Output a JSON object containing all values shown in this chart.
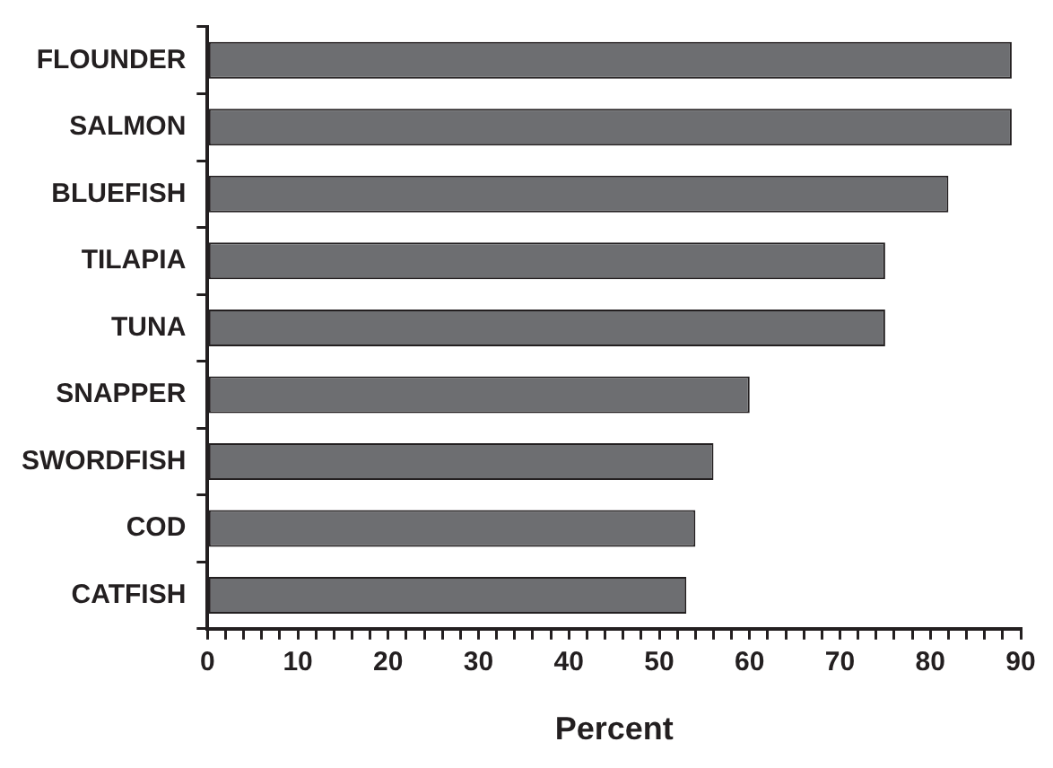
{
  "chart_data": {
    "type": "bar",
    "orientation": "horizontal",
    "xlabel": "Percent",
    "categories": [
      "FLOUNDER",
      "SALMON",
      "BLUEFISH",
      "TILAPIA",
      "TUNA",
      "SNAPPER",
      "SWORDFISH",
      "COD",
      "CATFISH"
    ],
    "values": [
      89,
      89,
      82,
      75,
      75,
      60,
      56,
      54,
      53
    ],
    "color": "#6d6e71",
    "xlim": [
      0,
      90
    ],
    "xticks": [
      0,
      {
        "value": 2,
        "label": null
      },
      {
        "value": 4,
        "label": null
      },
      {
        "value": 6,
        "label": null
      },
      {
        "value": 8,
        "label": null
      },
      10,
      {
        "value": 12,
        "label": null
      },
      {
        "value": 14,
        "label": null
      },
      {
        "value": 16,
        "label": null
      },
      {
        "value": 18,
        "label": null
      },
      20,
      {
        "value": 22,
        "label": null
      },
      {
        "value": 24,
        "label": null
      },
      {
        "value": 26,
        "label": null
      },
      {
        "value": 28,
        "label": null
      },
      30,
      {
        "value": 32,
        "label": null
      },
      {
        "value": 34,
        "label": null
      },
      {
        "value": 36,
        "label": null
      },
      {
        "value": 38,
        "label": null
      },
      40,
      {
        "value": 42,
        "label": null
      },
      {
        "value": 44,
        "label": null
      },
      {
        "value": 46,
        "label": null
      },
      {
        "value": 48,
        "label": null
      },
      50,
      {
        "value": 52,
        "label": null
      },
      {
        "value": 54,
        "label": null
      },
      {
        "value": 56,
        "label": null
      },
      {
        "value": 58,
        "label": null
      },
      60,
      {
        "value": 62,
        "label": null
      },
      {
        "value": 64,
        "label": null
      },
      {
        "value": 66,
        "label": null
      },
      {
        "value": 68,
        "label": null
      },
      70,
      {
        "value": 72,
        "label": null
      },
      {
        "value": 74,
        "label": null
      },
      {
        "value": 76,
        "label": null
      },
      {
        "value": 78,
        "label": null
      },
      80,
      {
        "value": 82,
        "label": null
      },
      {
        "value": 84,
        "label": null
      },
      {
        "value": 86,
        "label": null
      },
      {
        "value": 88,
        "label": null
      },
      90
    ],
    "grid": false,
    "legend": false
  }
}
